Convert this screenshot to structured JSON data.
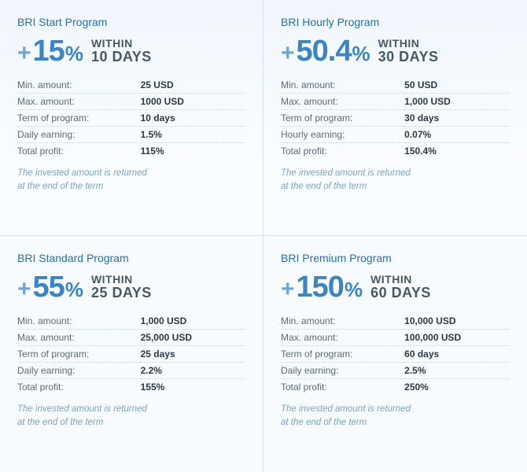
{
  "colors": {
    "brand_blue": "#3b85c4",
    "title_blue": "#2c6ea8",
    "text_muted": "#5b6a78",
    "text_dark": "#2b3845",
    "note_blue": "#7aa3c9",
    "divider": "#d8e1ea",
    "dotted": "#c8d4df",
    "bg_top_gradient": "#f0f6fc",
    "bg": "#f8fbfe"
  },
  "within_label": "WITHIN",
  "note_line1": "The invested amount is returned",
  "note_line2": "at the end of the term",
  "programs": [
    {
      "title": "BRI Start Program",
      "percent": "15",
      "days": "10 DAYS",
      "rows": [
        {
          "label": "Min. amount:",
          "value": "25 USD"
        },
        {
          "label": "Max. amount:",
          "value": "1000 USD"
        },
        {
          "label": "Term of program:",
          "value": "10 days"
        },
        {
          "label": "Daily earning:",
          "value": "1.5%"
        },
        {
          "label": "Total profit:",
          "value": "115%"
        }
      ]
    },
    {
      "title": "BRI Hourly Program",
      "percent": "50.4",
      "days": "30 DAYS",
      "rows": [
        {
          "label": "Min. amount:",
          "value": "50 USD"
        },
        {
          "label": "Max. amount:",
          "value": "1,000 USD"
        },
        {
          "label": "Term of program:",
          "value": "30 days"
        },
        {
          "label": "Hourly earning:",
          "value": "0.07%"
        },
        {
          "label": "Total profit:",
          "value": "150.4%"
        }
      ]
    },
    {
      "title": "BRI Standard Program",
      "percent": "55",
      "days": "25 DAYS",
      "rows": [
        {
          "label": "Min. amount:",
          "value": "1,000 USD"
        },
        {
          "label": "Max. amount:",
          "value": "25,000 USD"
        },
        {
          "label": "Term of program:",
          "value": "25 days"
        },
        {
          "label": "Daily earning:",
          "value": "2.2%"
        },
        {
          "label": "Total profit:",
          "value": "155%"
        }
      ]
    },
    {
      "title": "BRI Premium Program",
      "percent": "150",
      "days": "60 DAYS",
      "rows": [
        {
          "label": "Min. amount:",
          "value": "10,000 USD"
        },
        {
          "label": "Max. amount:",
          "value": "100,000 USD"
        },
        {
          "label": "Term of program:",
          "value": "60 days"
        },
        {
          "label": "Daily earning:",
          "value": "2.5%"
        },
        {
          "label": "Total profit:",
          "value": "250%"
        }
      ]
    }
  ]
}
